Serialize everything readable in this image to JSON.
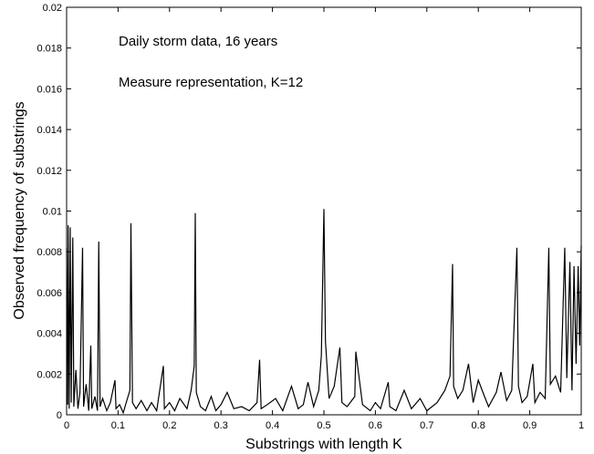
{
  "chart_data": {
    "type": "line",
    "annotations": [
      "Daily storm data, 16 years",
      "Measure representation, K=12"
    ],
    "xlabel": "Substrings with length K",
    "ylabel": "Observed frequency of substrings",
    "color": "#000000",
    "grid": false,
    "xlim": [
      0,
      1
    ],
    "xticks": [
      0,
      0.1,
      0.2,
      0.3,
      0.4,
      0.5,
      0.6,
      0.7,
      0.8,
      0.9,
      1
    ],
    "ylim": [
      0,
      0.02
    ],
    "yticks": [
      0,
      0.002,
      0.004,
      0.006,
      0.008,
      0.01,
      0.012,
      0.014,
      0.016,
      0.018,
      0.02
    ],
    "x": [
      0,
      0.002,
      0.003,
      0.005,
      0.007,
      0.009,
      0.012,
      0.014,
      0.018,
      0.022,
      0.026,
      0.031,
      0.033,
      0.038,
      0.043,
      0.047,
      0.049,
      0.055,
      0.06,
      0.0625,
      0.065,
      0.07,
      0.078,
      0.085,
      0.094,
      0.096,
      0.103,
      0.11,
      0.117,
      0.123,
      0.125,
      0.128,
      0.135,
      0.145,
      0.156,
      0.165,
      0.175,
      0.188,
      0.19,
      0.2,
      0.21,
      0.22,
      0.234,
      0.242,
      0.248,
      0.25,
      0.252,
      0.26,
      0.27,
      0.281,
      0.29,
      0.3,
      0.312,
      0.325,
      0.34,
      0.355,
      0.37,
      0.375,
      0.378,
      0.39,
      0.406,
      0.42,
      0.437,
      0.45,
      0.46,
      0.469,
      0.48,
      0.49,
      0.495,
      0.5,
      0.503,
      0.51,
      0.52,
      0.531,
      0.535,
      0.545,
      0.56,
      0.562,
      0.575,
      0.59,
      0.6,
      0.61,
      0.625,
      0.628,
      0.64,
      0.656,
      0.67,
      0.687,
      0.7,
      0.72,
      0.735,
      0.745,
      0.75,
      0.752,
      0.76,
      0.77,
      0.781,
      0.79,
      0.8,
      0.812,
      0.82,
      0.835,
      0.844,
      0.855,
      0.865,
      0.875,
      0.878,
      0.885,
      0.895,
      0.906,
      0.91,
      0.92,
      0.93,
      0.937,
      0.94,
      0.95,
      0.96,
      0.968,
      0.972,
      0.978,
      0.982,
      0.986,
      0.99,
      0.994,
      0.997,
      1
    ],
    "values": [
      0.0082,
      0.0005,
      0.0093,
      0.0003,
      0.0092,
      0.0006,
      0.0087,
      0.0004,
      0.0022,
      0.0003,
      0.0011,
      0.0082,
      0.0004,
      0.0015,
      0.0002,
      0.0034,
      0.0003,
      0.0009,
      0.0002,
      0.0085,
      0.0004,
      0.0008,
      0.0002,
      0.0006,
      0.0017,
      0.0003,
      0.0005,
      0.0001,
      0.0007,
      0.0012,
      0.0094,
      0.0006,
      0.0003,
      0.0007,
      0.0002,
      0.0006,
      0.0002,
      0.0024,
      0.0003,
      0.0006,
      0.0002,
      0.0008,
      0.0003,
      0.0012,
      0.0024,
      0.0099,
      0.0011,
      0.0004,
      0.0002,
      0.0009,
      0.0002,
      0.0005,
      0.0011,
      0.0003,
      0.0004,
      0.0002,
      0.0006,
      0.0027,
      0.0003,
      0.0005,
      0.0008,
      0.0002,
      0.0014,
      0.0003,
      0.0005,
      0.0016,
      0.0004,
      0.0012,
      0.0029,
      0.0101,
      0.0036,
      0.0008,
      0.0014,
      0.0033,
      0.0006,
      0.0004,
      0.0009,
      0.0031,
      0.0005,
      0.0002,
      0.0006,
      0.0003,
      0.0016,
      0.0004,
      0.0002,
      0.0012,
      0.0003,
      0.0008,
      0.0002,
      0.0006,
      0.0012,
      0.0019,
      0.0074,
      0.0014,
      0.0008,
      0.0012,
      0.0025,
      0.0006,
      0.0017,
      0.0009,
      0.0004,
      0.0011,
      0.0021,
      0.0007,
      0.0012,
      0.0082,
      0.0014,
      0.0006,
      0.0009,
      0.0025,
      0.0006,
      0.0011,
      0.0008,
      0.0082,
      0.0015,
      0.0019,
      0.0011,
      0.0082,
      0.0018,
      0.0075,
      0.0012,
      0.0073,
      0.0025,
      0.0073,
      0.0034,
      0.0083
    ]
  }
}
